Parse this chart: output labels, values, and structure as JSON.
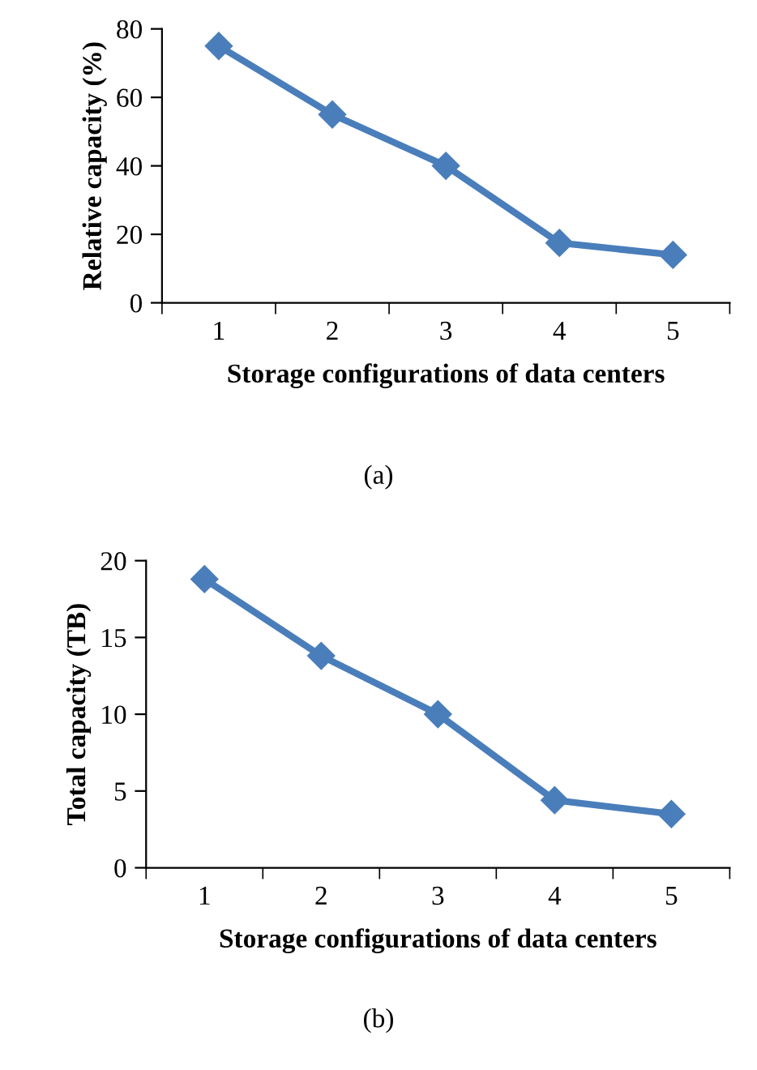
{
  "chart_data": [
    {
      "type": "line",
      "xlabel": "Storage configurations of data centers",
      "ylabel": "Relative capacity (%)",
      "categories": [
        "1",
        "2",
        "3",
        "4",
        "5"
      ],
      "series": [
        {
          "color": "#4a7ebb",
          "values": [
            75,
            55,
            40,
            17.5,
            14
          ]
        }
      ],
      "ylim": [
        0,
        80
      ],
      "yticks": [
        0,
        20,
        40,
        60,
        80
      ],
      "marker": "diamond",
      "line_style": "solid",
      "grid": false,
      "legend": false,
      "annotations": [
        "(a)"
      ]
    },
    {
      "type": "line",
      "xlabel": "Storage configurations of data centers",
      "ylabel": "Total capacity (TB)",
      "categories": [
        "1",
        "2",
        "3",
        "4",
        "5"
      ],
      "series": [
        {
          "color": "#4a7ebb",
          "values": [
            18.8,
            13.8,
            10,
            4.4,
            3.5
          ]
        }
      ],
      "ylim": [
        0,
        20
      ],
      "yticks": [
        0,
        5,
        10,
        15,
        20
      ],
      "marker": "diamond",
      "line_style": "solid",
      "grid": false,
      "legend": false,
      "annotations": [
        "(b)"
      ]
    }
  ]
}
